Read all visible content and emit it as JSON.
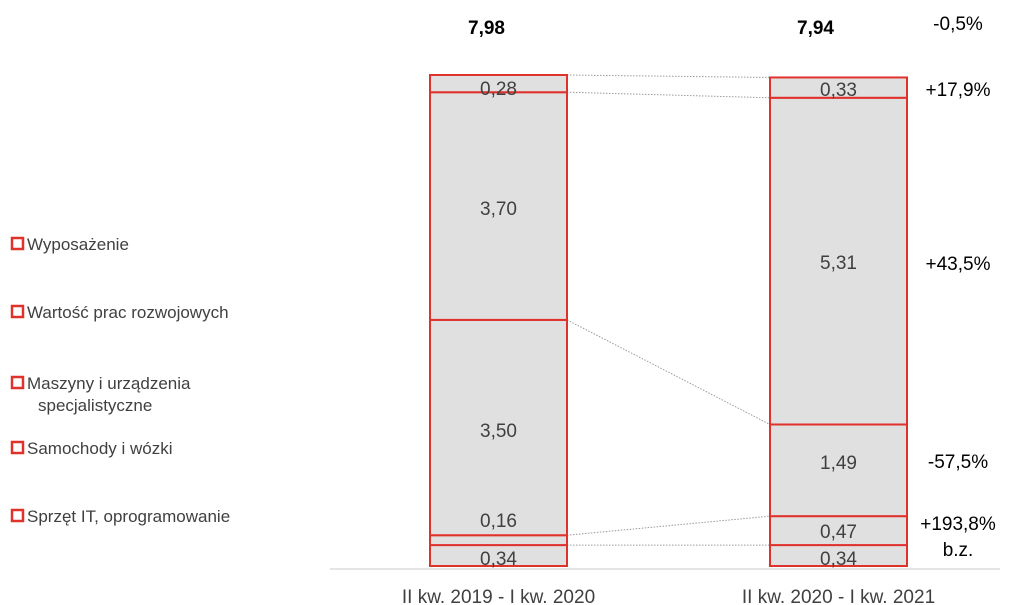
{
  "chart_data": {
    "type": "bar",
    "stacked": true,
    "categories": [
      "II kw. 2019 - I kw. 2020",
      "II kw. 2020 - I kw. 2021"
    ],
    "series": [
      {
        "name": "Sprzęt IT, oprogramowanie",
        "values": [
          0.34,
          0.34
        ],
        "value_labels": [
          "0,34",
          "0,34"
        ],
        "change": "b.z."
      },
      {
        "name": "Samochody i wózki",
        "values": [
          0.16,
          0.47
        ],
        "value_labels": [
          "0,16",
          "0,47"
        ],
        "change": "+193,8%"
      },
      {
        "name": "Maszyny i urządzenia specjalistyczne",
        "values": [
          3.5,
          1.49
        ],
        "value_labels": [
          "3,50",
          "1,49"
        ],
        "change": "-57,5%"
      },
      {
        "name": "Wartość prac rozwojowych",
        "values": [
          3.7,
          5.31
        ],
        "value_labels": [
          "3,70",
          "5,31"
        ],
        "change": "+43,5%"
      },
      {
        "name": "Wyposażenie",
        "values": [
          0.28,
          0.33
        ],
        "value_labels": [
          "0,28",
          "0,33"
        ],
        "change": "+17,9%"
      }
    ],
    "totals": [
      7.98,
      7.94
    ],
    "total_labels": [
      "7,98",
      "7,94"
    ],
    "total_change": "-0,5%",
    "legend_placement": "left",
    "grid": false,
    "colors": {
      "segment_fill": "#e0e0e0",
      "segment_border": "#e0322d",
      "connector": "#9a9a9a",
      "text": "#404040",
      "legend_marker": "#e0322d"
    }
  }
}
